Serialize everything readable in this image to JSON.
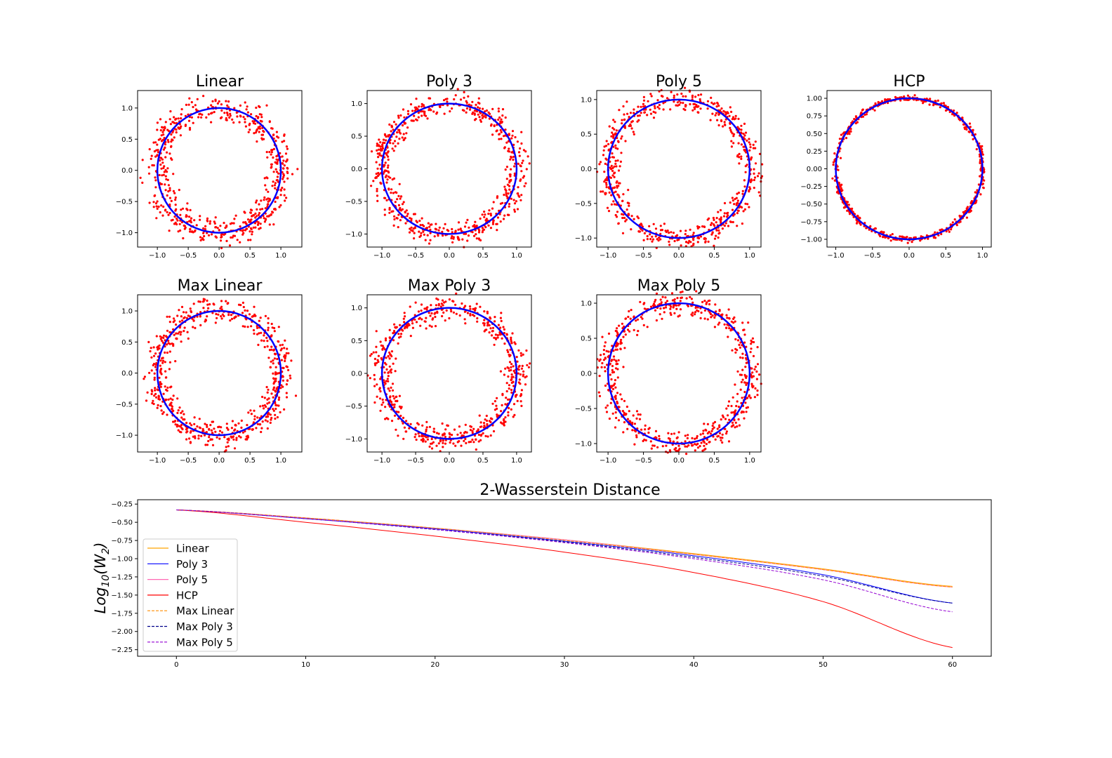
{
  "figure": {
    "scatter_titles": [
      "Linear",
      "Poly 3",
      "Poly 5",
      "HCP",
      "Max Linear",
      "Max Poly 3",
      "Max Poly 5"
    ],
    "bottom_title": "2-Wasserstein Distance",
    "bottom_ylabel": "Log10(W2)"
  },
  "colors": {
    "points": "#ff0000",
    "circle": "#0000ff",
    "Linear": "#ffa500",
    "Poly 3": "#0000ff",
    "Poly 5": "#ff69b4",
    "HCP": "#ff0000",
    "Max Linear": "#ff8c00",
    "Max Poly 3": "#00008b",
    "Max Poly 5": "#9400d3"
  },
  "chart_data": [
    {
      "type": "scatter",
      "title": "Linear",
      "xlim": [
        -1.32,
        1.34
      ],
      "ylim": [
        -1.23,
        1.28
      ],
      "xticks": [
        "−1.0",
        "−0.5",
        "0.0",
        "0.5",
        "1.0"
      ],
      "yticks": [
        "−1.0",
        "−0.5",
        "0.0",
        "0.5",
        "1.0"
      ],
      "series": [
        {
          "name": "unit circle",
          "shape": "x^2 + y^2 = 1"
        },
        {
          "name": "samples",
          "spread": 0.16,
          "density": "ring with gaps at left, top-right"
        }
      ]
    },
    {
      "type": "scatter",
      "title": "Poly 3",
      "xlim": [
        -1.22,
        1.22
      ],
      "ylim": [
        -1.2,
        1.2
      ],
      "xticks": [
        "−1.0",
        "−0.5",
        "0.0",
        "0.5",
        "1.0"
      ],
      "yticks": [
        "−1.0",
        "−0.5",
        "0.0",
        "0.5",
        "1.0"
      ],
      "series": [
        {
          "name": "unit circle",
          "shape": "x^2 + y^2 = 1"
        },
        {
          "name": "samples",
          "spread": 0.12
        }
      ]
    },
    {
      "type": "scatter",
      "title": "Poly 5",
      "xlim": [
        -1.16,
        1.16
      ],
      "ylim": [
        -1.13,
        1.13
      ],
      "xticks": [
        "−1.0",
        "−0.5",
        "0.0",
        "0.5",
        "1.0"
      ],
      "yticks": [
        "−1.0",
        "−0.5",
        "0.0",
        "0.5",
        "1.0"
      ],
      "series": [
        {
          "name": "unit circle",
          "shape": "x^2 + y^2 = 1"
        },
        {
          "name": "samples",
          "spread": 0.12
        }
      ]
    },
    {
      "type": "scatter",
      "title": "HCP",
      "xlim": [
        -1.12,
        1.12
      ],
      "ylim": [
        -1.11,
        1.11
      ],
      "xticks": [
        "−1.0",
        "−0.5",
        "0.0",
        "0.5",
        "1.0"
      ],
      "yticks": [
        "−1.00",
        "−0.75",
        "−0.50",
        "−0.25",
        "0.00",
        "0.25",
        "0.50",
        "0.75",
        "1.00"
      ],
      "series": [
        {
          "name": "unit circle",
          "shape": "x^2 + y^2 = 1"
        },
        {
          "name": "samples",
          "spread": 0.03
        }
      ]
    },
    {
      "type": "scatter",
      "title": "Max Linear",
      "xlim": [
        -1.32,
        1.34
      ],
      "ylim": [
        -1.27,
        1.26
      ],
      "xticks": [
        "−1.0",
        "−0.5",
        "0.0",
        "0.5",
        "1.0"
      ],
      "yticks": [
        "−1.0",
        "−0.5",
        "0.0",
        "0.5",
        "1.0"
      ],
      "series": [
        {
          "name": "unit circle",
          "shape": "x^2 + y^2 = 1"
        },
        {
          "name": "samples",
          "spread": 0.15
        }
      ]
    },
    {
      "type": "scatter",
      "title": "Max Poly 3",
      "xlim": [
        -1.22,
        1.22
      ],
      "ylim": [
        -1.2,
        1.2
      ],
      "xticks": [
        "−1.0",
        "−0.5",
        "0.0",
        "0.5",
        "1.0"
      ],
      "yticks": [
        "−1.0",
        "−0.5",
        "0.0",
        "0.5",
        "1.0"
      ],
      "series": [
        {
          "name": "unit circle",
          "shape": "x^2 + y^2 = 1"
        },
        {
          "name": "samples",
          "spread": 0.13
        }
      ]
    },
    {
      "type": "scatter",
      "title": "Max Poly 5",
      "xlim": [
        -1.16,
        1.16
      ],
      "ylim": [
        -1.12,
        1.12
      ],
      "xticks": [
        "−1.0",
        "−0.5",
        "0.0",
        "0.5",
        "1.0"
      ],
      "yticks": [
        "−1.0",
        "−0.5",
        "0.0",
        "0.5",
        "1.0"
      ],
      "series": [
        {
          "name": "unit circle",
          "shape": "x^2 + y^2 = 1"
        },
        {
          "name": "samples",
          "spread": 0.12
        }
      ]
    },
    {
      "type": "line",
      "title": "2-Wasserstein Distance",
      "ylabel": "Log10(W2)",
      "xlim": [
        -3,
        63
      ],
      "ylim": [
        -2.34,
        -0.19
      ],
      "xticks": [
        "0",
        "10",
        "20",
        "30",
        "40",
        "50",
        "60"
      ],
      "yticks": [
        "−0.25",
        "−0.50",
        "−0.75",
        "−1.00",
        "−1.25",
        "−1.50",
        "−1.75",
        "−2.00",
        "−2.25"
      ],
      "legend": "upper-left",
      "x": [
        0,
        10,
        20,
        30,
        40,
        50,
        60
      ],
      "series": [
        {
          "name": "Linear",
          "style": "solid",
          "values": [
            -0.33,
            -0.44,
            -0.58,
            -0.74,
            -0.93,
            -1.14,
            -1.38
          ]
        },
        {
          "name": "Poly 3",
          "style": "solid",
          "values": [
            -0.33,
            -0.45,
            -0.59,
            -0.76,
            -0.96,
            -1.22,
            -1.61
          ]
        },
        {
          "name": "Poly 5",
          "style": "solid",
          "values": [
            -0.33,
            -0.44,
            -0.58,
            -0.74,
            -0.94,
            -1.15,
            -1.39
          ]
        },
        {
          "name": "HCP",
          "style": "solid",
          "values": [
            -0.33,
            -0.5,
            -0.69,
            -0.91,
            -1.19,
            -1.59,
            -2.22
          ]
        },
        {
          "name": "Max Linear",
          "style": "dashed",
          "values": [
            -0.33,
            -0.44,
            -0.58,
            -0.75,
            -0.94,
            -1.15,
            -1.39
          ]
        },
        {
          "name": "Max Poly 3",
          "style": "dashed",
          "values": [
            -0.33,
            -0.45,
            -0.6,
            -0.77,
            -0.98,
            -1.24,
            -1.61
          ]
        },
        {
          "name": "Max Poly 5",
          "style": "dashed",
          "values": [
            -0.33,
            -0.45,
            -0.6,
            -0.78,
            -1.0,
            -1.29,
            -1.73
          ]
        }
      ]
    }
  ]
}
